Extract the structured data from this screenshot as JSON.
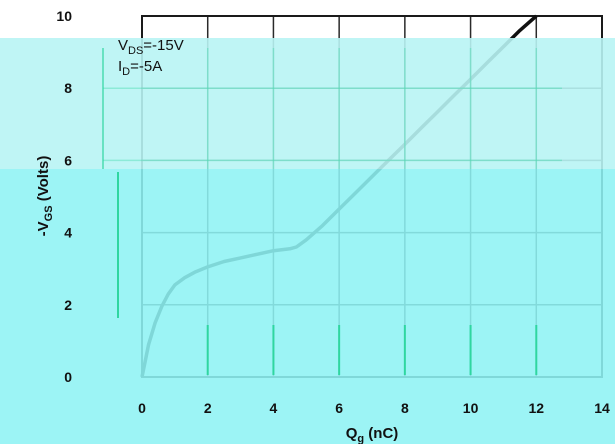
{
  "chart_data": {
    "type": "line",
    "xlabel": "Q",
    "xlabel_sub": "g",
    "xlabel_unit": " (nC)",
    "ylabel": "-V",
    "ylabel_sub": "GS",
    "ylabel_unit": " (Volts)",
    "xlim": [
      0,
      14
    ],
    "ylim": [
      0,
      10
    ],
    "x_ticks": [
      0,
      2,
      4,
      6,
      8,
      10,
      12,
      14
    ],
    "y_ticks": [
      0,
      2,
      4,
      6,
      8,
      10
    ],
    "grid": true,
    "annotations": [
      {
        "main": "V",
        "sub": "DS",
        "value": "=-15V"
      },
      {
        "main": "I",
        "sub": "D",
        "value": "=-5A"
      }
    ],
    "series": [
      {
        "x": [
          0,
          0.2,
          0.4,
          0.6,
          0.8,
          1.0,
          1.3,
          1.6,
          2.0,
          2.5,
          3.0,
          3.5,
          4.0,
          4.5,
          4.7,
          5.0,
          5.5,
          6.0,
          6.5,
          7.0,
          7.5,
          8.0,
          8.5,
          9.0,
          9.5,
          10.0,
          10.5,
          11.0,
          11.5,
          12.0
        ],
        "y": [
          0,
          0.9,
          1.5,
          1.95,
          2.3,
          2.55,
          2.75,
          2.9,
          3.05,
          3.2,
          3.3,
          3.4,
          3.5,
          3.55,
          3.6,
          3.8,
          4.2,
          4.65,
          5.1,
          5.55,
          6.0,
          6.45,
          6.9,
          7.35,
          7.8,
          8.25,
          8.7,
          9.15,
          9.6,
          10.0
        ]
      }
    ],
    "colors": {
      "curve": "#111111",
      "frame": "#1a1a1a",
      "grid": "#2a2a2a",
      "overlay_light": "#b8f4f4",
      "overlay_mid": "#8ef2f4",
      "overlay_grid": "#2fd6a0"
    }
  }
}
